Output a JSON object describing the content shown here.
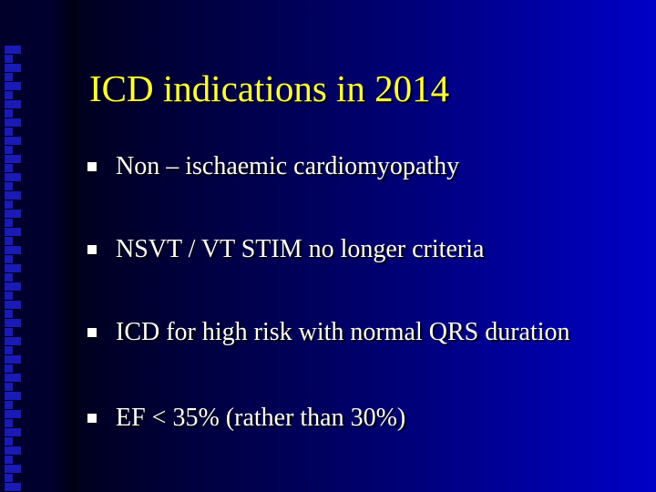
{
  "slide": {
    "title": "ICD indications in 2014",
    "bullets": [
      "Non – ischaemic cardiomyopathy",
      "NSVT / VT STIM no longer criteria",
      "ICD for high risk with normal QRS duration",
      "EF  < 35% (rather than 30%)"
    ]
  },
  "colors": {
    "title": "#ffff3a",
    "text": "#ffffff",
    "background": "#0000c8",
    "side_squares": "#1a1ab4"
  },
  "icons": {
    "bullet": "square-bullet-icon"
  }
}
